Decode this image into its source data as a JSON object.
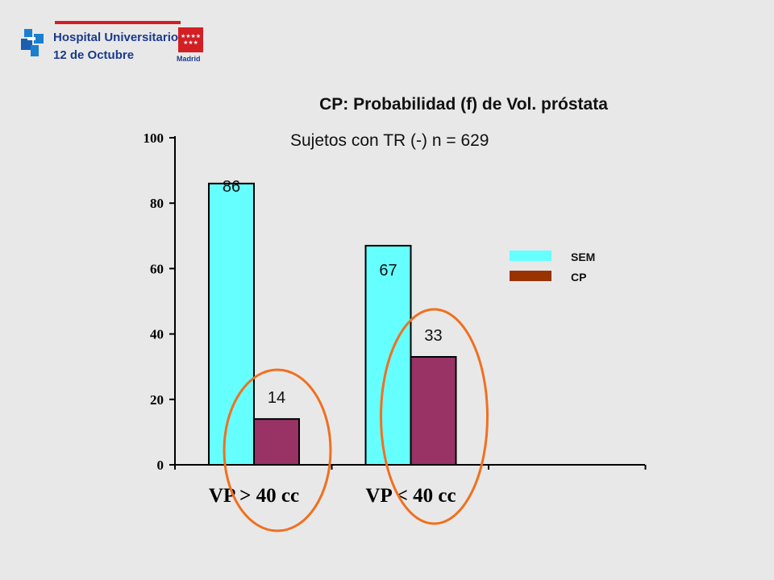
{
  "header": {
    "hospital_line1": "Hospital Universitario",
    "hospital_line2": "12 de Octubre",
    "region_label": "Madrid",
    "brand_color": "#1b3a8a",
    "accent_color": "#d21f24"
  },
  "chart_data": {
    "type": "bar",
    "title": "CP: Probabilidad (f) de Vol. próstata",
    "subtitle": "Sujetos con TR (-)  n =  629",
    "categories": [
      "VP >  40 cc",
      "VP < 40 cc"
    ],
    "series": [
      {
        "name": "SEM",
        "values": [
          86,
          67
        ],
        "color": "#66ffff"
      },
      {
        "name": "CP",
        "values": [
          14,
          33
        ],
        "color": "#993366",
        "legend_color": "#993300"
      }
    ],
    "data_labels": [
      [
        "86",
        "67"
      ],
      [
        "14",
        "33"
      ]
    ],
    "yticks": [
      0,
      20,
      40,
      60,
      80,
      100
    ],
    "ylim": [
      0,
      100
    ],
    "xlabel": "",
    "ylabel": "",
    "grid": false,
    "legend": "right",
    "highlight": "orange ellipses circle the CP bar of each category",
    "highlight_color": "#f07020"
  }
}
